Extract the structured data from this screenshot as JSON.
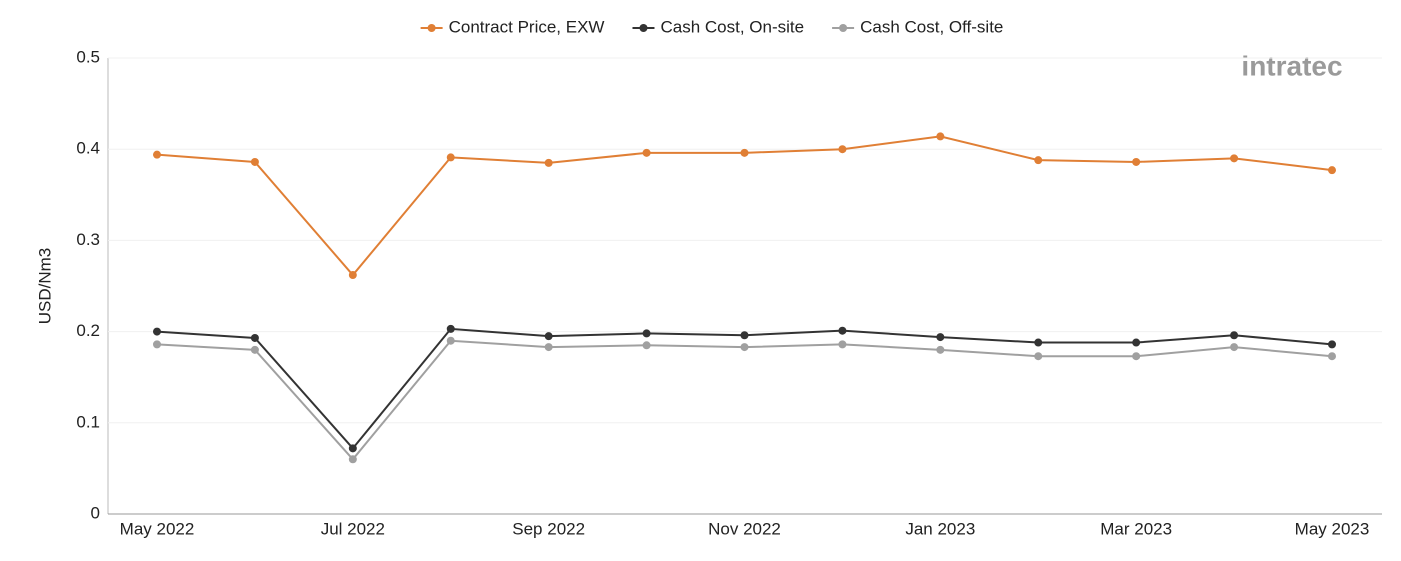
{
  "chart_data": {
    "type": "line",
    "watermark": "intratec",
    "y_label": "USD/Nm3",
    "categories": [
      "May 2022",
      null,
      "Jul 2022",
      null,
      "Sep 2022",
      null,
      "Nov 2022",
      null,
      "Jan 2023",
      null,
      "Mar 2023",
      null,
      "May 2023"
    ],
    "series": [
      {
        "name": "Contract Price, EXW",
        "color": "#e07f35",
        "values": [
          0.394,
          0.386,
          0.262,
          0.391,
          0.385,
          0.396,
          0.396,
          0.4,
          0.414,
          0.388,
          0.386,
          0.39,
          0.377
        ]
      },
      {
        "name": "Cash Cost, On-site",
        "color": "#333333",
        "values": [
          0.2,
          0.193,
          0.072,
          0.203,
          0.195,
          0.198,
          0.196,
          0.201,
          0.194,
          0.188,
          0.188,
          0.196,
          0.186
        ]
      },
      {
        "name": "Cash Cost, Off-site",
        "color": "#a0a0a0",
        "values": [
          0.186,
          0.18,
          0.06,
          0.19,
          0.183,
          0.185,
          0.183,
          0.186,
          0.18,
          0.173,
          0.173,
          0.183,
          0.173
        ]
      }
    ],
    "ylim": [
      0,
      0.5
    ],
    "yticks": [
      0,
      0.1,
      0.2,
      0.3,
      0.4,
      0.5
    ],
    "grid": true,
    "legend": "top"
  }
}
